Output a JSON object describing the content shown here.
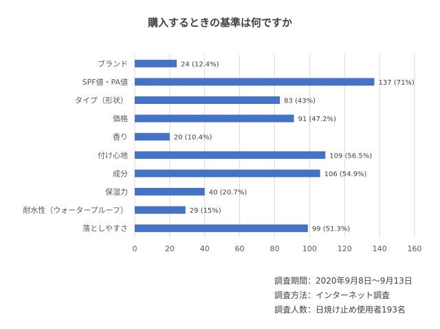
{
  "chart_data": {
    "type": "bar",
    "orientation": "horizontal",
    "title": "購入するときの基準は何ですか",
    "categories": [
      "ブランド",
      "SPF値・PA値",
      "タイプ（形状）",
      "価格",
      "香り",
      "付け心地",
      "成分",
      "保湿力",
      "耐水性（ウォータープルーフ）",
      "落としやすさ"
    ],
    "values": [
      24,
      137,
      83,
      91,
      20,
      109,
      106,
      40,
      29,
      99
    ],
    "data_labels": [
      "24 (12.4%)",
      "137 (71%)",
      "83 (43%)",
      "91 (47.2%)",
      "20 (10.4%)",
      "109 (56.5%)",
      "106 (54.9%)",
      "40 (20.7%)",
      "29 (15%)",
      "99 (51.3%)"
    ],
    "xlim": [
      0,
      160
    ],
    "xticks": [
      0,
      20,
      40,
      60,
      80,
      100,
      120,
      140,
      160
    ],
    "grid": "vertical",
    "bar_color": "#4472C4"
  },
  "notes": {
    "period": "調査期間：2020年9月8日～9月13日",
    "method": "調査方法：インターネット調査",
    "sample": "調査人数：日焼け止め使用者193名"
  }
}
